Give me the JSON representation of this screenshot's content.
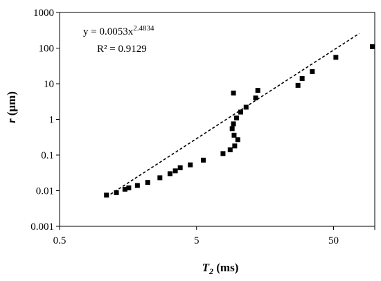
{
  "chart_data": {
    "type": "scatter",
    "xscale": "log",
    "yscale": "log",
    "xlim": [
      0.5,
      100
    ],
    "ylim": [
      0.001,
      1000
    ],
    "grid": false,
    "legend": "none",
    "xlabel": {
      "var": "T",
      "sub": "2",
      "unit": " (ms)"
    },
    "ylabel": {
      "var": "r",
      "unit": " (μm)"
    },
    "xticks": [
      0.5,
      5,
      50
    ],
    "xtick_labels": [
      "0.5",
      "5",
      "50"
    ],
    "yticks": [
      0.001,
      0.01,
      0.1,
      1,
      10,
      100,
      1000
    ],
    "ytick_labels": [
      "0.001",
      "0.01",
      "0.1",
      "1",
      "10",
      "100",
      "1000"
    ],
    "annotation": {
      "equation_prefix": "y = 0.0053x",
      "equation_exponent": "2.4834",
      "r2": "R² = 0.9129"
    },
    "trendline": {
      "a": 0.0053,
      "b": 2.4834,
      "x_range": [
        1.1,
        77
      ],
      "style": "dashed",
      "color": "#000000"
    },
    "marker": {
      "shape": "square",
      "color": "#000000"
    },
    "points": [
      [
        1.1,
        0.0075
      ],
      [
        1.3,
        0.0088
      ],
      [
        1.5,
        0.011
      ],
      [
        1.6,
        0.012
      ],
      [
        1.85,
        0.014
      ],
      [
        2.2,
        0.017
      ],
      [
        2.7,
        0.023
      ],
      [
        3.2,
        0.03
      ],
      [
        3.5,
        0.036
      ],
      [
        3.8,
        0.044
      ],
      [
        4.5,
        0.053
      ],
      [
        5.6,
        0.072
      ],
      [
        7.8,
        0.11
      ],
      [
        8.8,
        0.14
      ],
      [
        9.5,
        0.18
      ],
      [
        10.0,
        0.27
      ],
      [
        9.4,
        0.36
      ],
      [
        9.1,
        0.55
      ],
      [
        9.3,
        0.75
      ],
      [
        9.8,
        1.1
      ],
      [
        10.5,
        1.6
      ],
      [
        11.5,
        2.2
      ],
      [
        13.5,
        4.0
      ],
      [
        14.0,
        6.5
      ],
      [
        9.3,
        5.5
      ],
      [
        27.5,
        9.0
      ],
      [
        29.5,
        14.0
      ],
      [
        35.0,
        22.0
      ],
      [
        52.0,
        55.0
      ],
      [
        96.0,
        110.0
      ]
    ]
  }
}
